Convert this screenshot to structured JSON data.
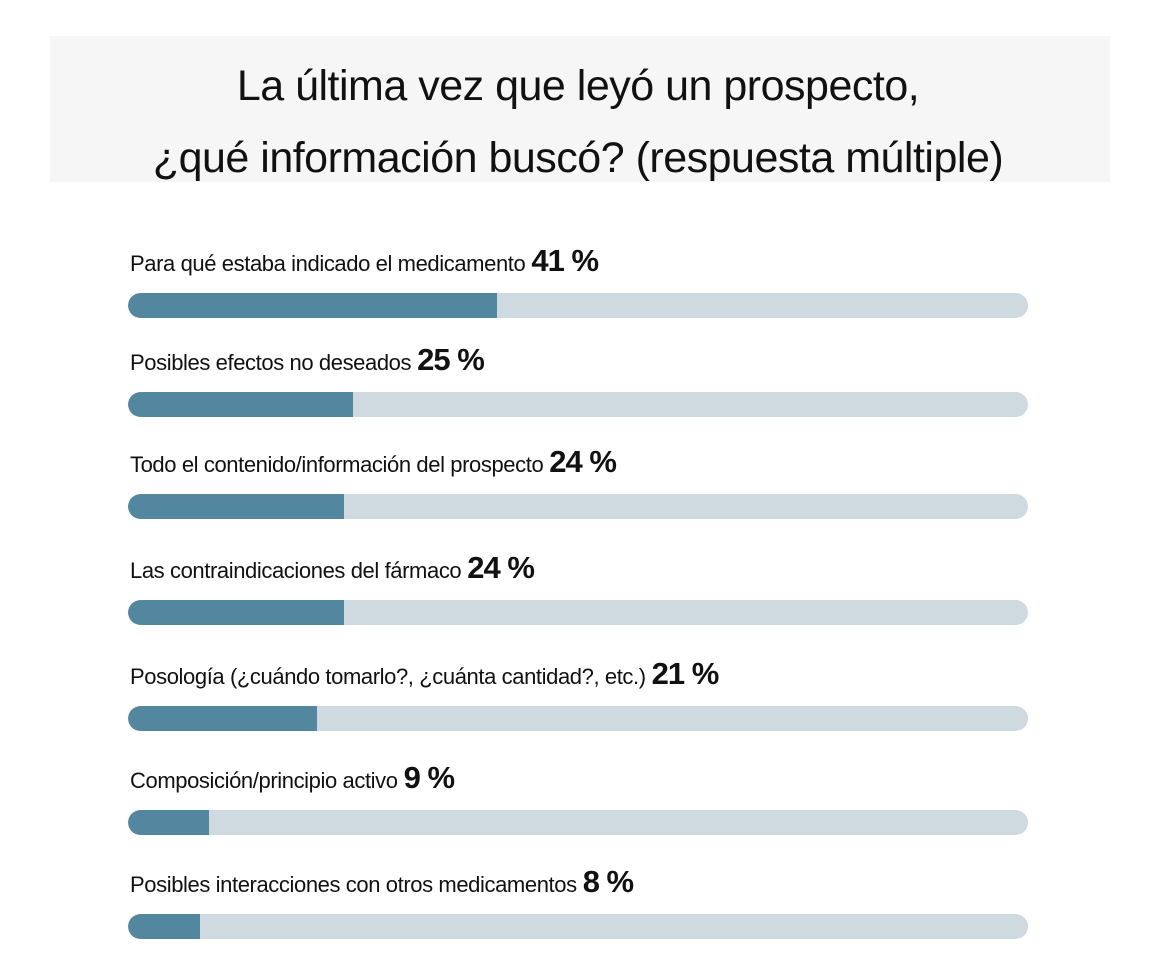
{
  "chart_data": {
    "type": "bar",
    "orientation": "horizontal",
    "title_lines": [
      "La última vez que leyó un prospecto,",
      "¿qué información buscó? (respuesta múltiple)"
    ],
    "categories": [
      "Para qué estaba indicado el medicamento",
      "Posibles efectos no deseados",
      "Todo el contenido/información del prospecto",
      "Las contraindicaciones del fármaco",
      "Posología (¿cuándo tomarlo?, ¿cuánta cantidad?, etc.)",
      "Composición/principio activo",
      "Posibles interacciones con otros medicamentos"
    ],
    "values": [
      41,
      25,
      24,
      24,
      21,
      9,
      8
    ],
    "value_labels": [
      "41 %",
      "25 %",
      "24 %",
      "24 %",
      "21 %",
      "9 %",
      "8 %"
    ],
    "xlim": [
      0,
      100
    ],
    "unit": "%",
    "grid": false,
    "colors": {
      "fill": "#53879f",
      "track": "#cfdae0"
    }
  }
}
